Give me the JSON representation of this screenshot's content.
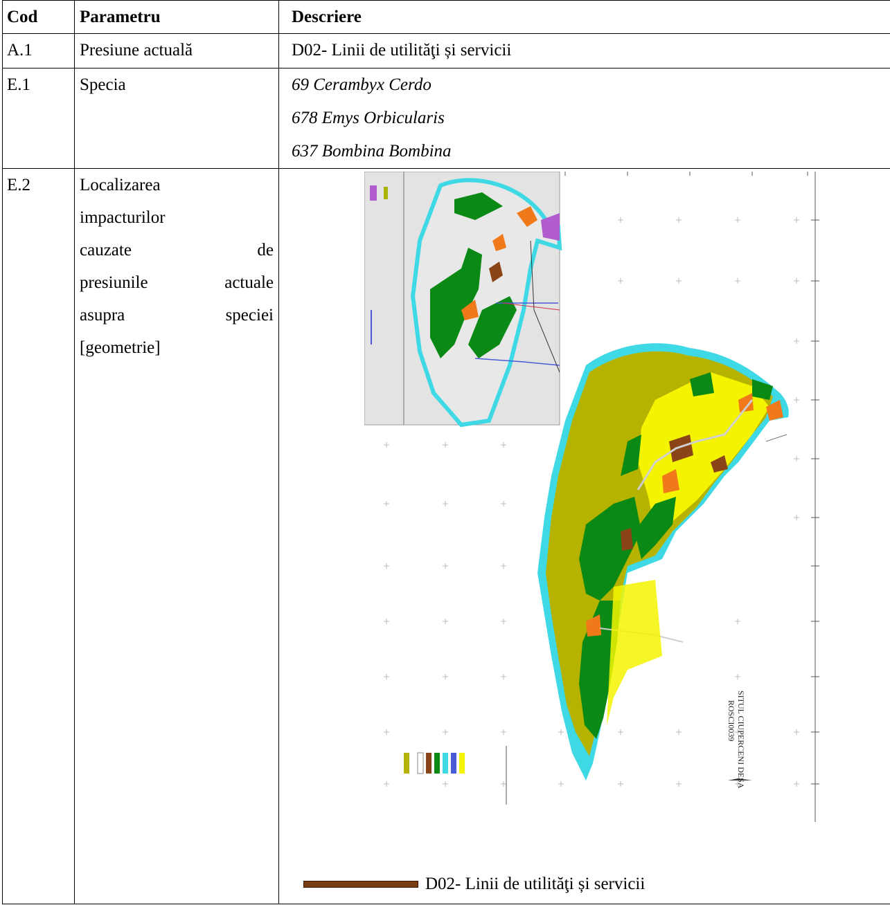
{
  "headers": {
    "cod": "Cod",
    "parametru": "Parametru",
    "descriere": "Descriere"
  },
  "rows": {
    "a1": {
      "cod": "A.1",
      "parametru": "Presiune actuală",
      "descriere": "D02- Linii de utilităţi și servicii"
    },
    "e1": {
      "cod": "E.1",
      "parametru": "Specia",
      "species": [
        "69 Cerambyx Cerdo",
        "678 Emys Orbicularis",
        "637 Bombina Bombina"
      ]
    },
    "e2": {
      "cod": "E.2",
      "parametru_lines": [
        "Localizarea",
        "impacturilor",
        "cauzate",
        "de",
        "presiunile",
        "actuale",
        "asupra",
        "speciei",
        "[geometrie]"
      ],
      "map_title": "SITUL CIUPERCENI DESA",
      "map_code": "ROSCI0039",
      "legend_label": "D02- Linii de utilităţi și servicii"
    }
  },
  "colors": {
    "olive": "#b5b300",
    "yellow": "#f4f400",
    "green": "#0a8a14",
    "orange": "#f07a1a",
    "brown": "#8a4417",
    "cyan": "#3fd9e6",
    "purple": "#b05ccf",
    "inset_bg": "#e3e3e3",
    "legend_bar": "#7a3c12"
  }
}
